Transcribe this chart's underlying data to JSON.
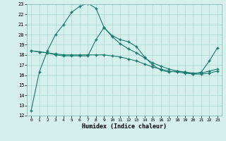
{
  "xlabel": "Humidex (Indice chaleur)",
  "background_color": "#d5efed",
  "grid_color": "#aad8d4",
  "line_color": "#1a7a6e",
  "xlim": [
    -0.5,
    23.5
  ],
  "ylim": [
    12,
    23
  ],
  "xticks": [
    0,
    1,
    2,
    3,
    4,
    5,
    6,
    7,
    8,
    9,
    10,
    11,
    12,
    13,
    14,
    15,
    16,
    17,
    18,
    19,
    20,
    21,
    22,
    23
  ],
  "yticks": [
    12,
    13,
    14,
    15,
    16,
    17,
    18,
    19,
    20,
    21,
    22,
    23
  ],
  "line1_x": [
    0,
    1,
    2,
    3,
    4,
    5,
    6,
    7,
    8,
    9,
    10,
    11,
    12,
    13,
    14,
    15,
    16,
    17,
    18,
    19,
    20,
    21,
    22,
    23
  ],
  "line1_y": [
    12.5,
    16.3,
    18.4,
    20.0,
    21.0,
    22.2,
    22.8,
    23.1,
    22.6,
    20.7,
    19.9,
    19.5,
    19.3,
    18.8,
    17.8,
    17.0,
    16.5,
    16.3,
    16.4,
    16.3,
    16.1,
    16.3,
    17.4,
    18.7
  ],
  "line2_x": [
    0,
    1,
    2,
    3,
    4,
    5,
    6,
    7,
    8,
    9,
    10,
    11,
    12,
    13,
    14,
    15,
    16,
    17,
    18,
    19,
    20,
    21,
    22,
    23
  ],
  "line2_y": [
    18.4,
    18.3,
    18.2,
    18.0,
    17.9,
    17.9,
    17.9,
    17.9,
    19.5,
    20.7,
    19.8,
    19.1,
    18.6,
    18.2,
    17.7,
    17.2,
    16.9,
    16.6,
    16.4,
    16.3,
    16.2,
    16.2,
    16.4,
    16.6
  ],
  "line3_x": [
    0,
    1,
    2,
    3,
    4,
    5,
    6,
    7,
    8,
    9,
    10,
    11,
    12,
    13,
    14,
    15,
    16,
    17,
    18,
    19,
    20,
    21,
    22,
    23
  ],
  "line3_y": [
    18.4,
    18.3,
    18.2,
    18.1,
    18.0,
    18.0,
    18.0,
    18.0,
    18.0,
    18.0,
    17.9,
    17.8,
    17.6,
    17.4,
    17.1,
    16.8,
    16.6,
    16.4,
    16.3,
    16.2,
    16.1,
    16.1,
    16.2,
    16.4
  ]
}
